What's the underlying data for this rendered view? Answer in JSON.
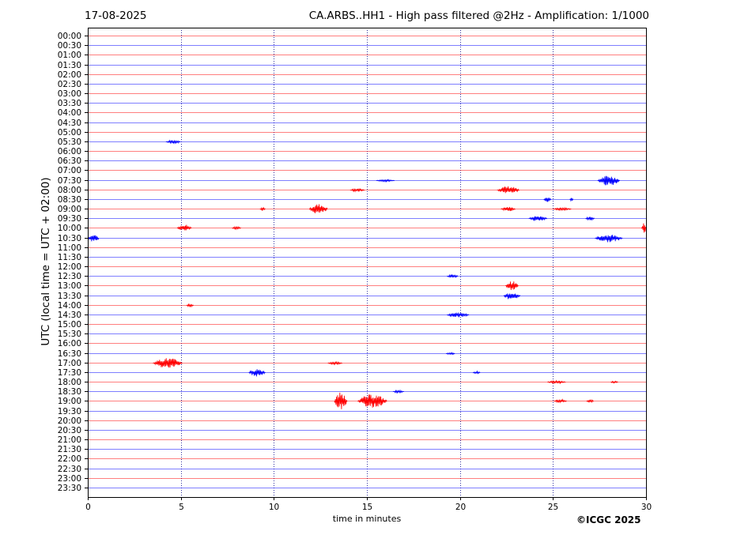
{
  "header": {
    "date": "17-08-2025",
    "title": "CA.ARBS..HH1 - High pass filtered @2Hz - Amplification: 1/1000"
  },
  "footer": {
    "copyright": "©ICGC 2025"
  },
  "colors": {
    "red_trace": "#ff0000",
    "blue_trace": "#0000ff",
    "grid": "#00008b",
    "axis": "#000000"
  },
  "chart_data": {
    "type": "line",
    "title": "CA.ARBS..HH1 - High pass filtered @2Hz - Amplification: 1/1000",
    "xlabel": "time in minutes",
    "ylabel": "UTC (local time = UTC + 02:00)",
    "xlim": [
      0,
      30
    ],
    "x_ticks": [
      0,
      5,
      10,
      15,
      20,
      25,
      30
    ],
    "vertical_grid": true,
    "grid_style": "dotted",
    "row_labels": [
      "00:00",
      "00:30",
      "01:00",
      "01:30",
      "02:00",
      "02:30",
      "03:00",
      "03:30",
      "04:00",
      "04:30",
      "05:00",
      "05:30",
      "06:00",
      "06:30",
      "07:00",
      "07:30",
      "08:00",
      "08:30",
      "09:00",
      "09:30",
      "10:00",
      "10:30",
      "11:00",
      "11:30",
      "12:00",
      "12:30",
      "13:00",
      "13:30",
      "14:00",
      "14:30",
      "15:00",
      "15:30",
      "16:00",
      "16:30",
      "17:00",
      "17:30",
      "18:00",
      "18:30",
      "19:00",
      "19:30",
      "20:00",
      "20:30",
      "21:00",
      "21:30",
      "22:00",
      "22:30",
      "23:00",
      "23:30"
    ],
    "row_colors": "alternating red (full hour) / blue (half hour)",
    "events": [
      {
        "row": "05:30",
        "x": 4.6,
        "amp": 0.15,
        "width": 0.8
      },
      {
        "row": "07:30",
        "x": 16.0,
        "amp": 0.1,
        "width": 1.0
      },
      {
        "row": "07:30",
        "x": 28.0,
        "amp": 0.45,
        "width": 1.2
      },
      {
        "row": "08:00",
        "x": 14.5,
        "amp": 0.15,
        "width": 0.8
      },
      {
        "row": "08:00",
        "x": 22.6,
        "amp": 0.35,
        "width": 1.2
      },
      {
        "row": "08:30",
        "x": 24.7,
        "amp": 0.2,
        "width": 0.4
      },
      {
        "row": "08:30",
        "x": 26.0,
        "amp": 0.15,
        "width": 0.2
      },
      {
        "row": "09:00",
        "x": 9.4,
        "amp": 0.15,
        "width": 0.3
      },
      {
        "row": "09:00",
        "x": 12.4,
        "amp": 0.45,
        "width": 1.0
      },
      {
        "row": "09:00",
        "x": 22.6,
        "amp": 0.2,
        "width": 0.8
      },
      {
        "row": "09:00",
        "x": 25.5,
        "amp": 0.12,
        "width": 1.0
      },
      {
        "row": "09:30",
        "x": 24.2,
        "amp": 0.25,
        "width": 1.0
      },
      {
        "row": "09:30",
        "x": 27.0,
        "amp": 0.15,
        "width": 0.5
      },
      {
        "row": "10:00",
        "x": 5.2,
        "amp": 0.3,
        "width": 0.8
      },
      {
        "row": "10:00",
        "x": 8.0,
        "amp": 0.12,
        "width": 0.5
      },
      {
        "row": "10:00",
        "x": 29.9,
        "amp": 0.5,
        "width": 0.3
      },
      {
        "row": "10:30",
        "x": 0.3,
        "amp": 0.35,
        "width": 0.6
      },
      {
        "row": "10:30",
        "x": 28.0,
        "amp": 0.35,
        "width": 1.5
      },
      {
        "row": "12:30",
        "x": 19.6,
        "amp": 0.15,
        "width": 0.6
      },
      {
        "row": "13:00",
        "x": 22.8,
        "amp": 0.4,
        "width": 0.7
      },
      {
        "row": "13:30",
        "x": 22.8,
        "amp": 0.35,
        "width": 0.9
      },
      {
        "row": "14:00",
        "x": 5.5,
        "amp": 0.12,
        "width": 0.4
      },
      {
        "row": "14:30",
        "x": 19.9,
        "amp": 0.2,
        "width": 1.2
      },
      {
        "row": "16:30",
        "x": 19.5,
        "amp": 0.1,
        "width": 0.5
      },
      {
        "row": "17:00",
        "x": 4.3,
        "amp": 0.45,
        "width": 1.6
      },
      {
        "row": "17:00",
        "x": 13.3,
        "amp": 0.12,
        "width": 0.8
      },
      {
        "row": "17:30",
        "x": 9.1,
        "amp": 0.35,
        "width": 0.9
      },
      {
        "row": "17:30",
        "x": 20.9,
        "amp": 0.12,
        "width": 0.4
      },
      {
        "row": "18:00",
        "x": 25.2,
        "amp": 0.12,
        "width": 1.0
      },
      {
        "row": "18:00",
        "x": 28.3,
        "amp": 0.1,
        "width": 0.4
      },
      {
        "row": "18:30",
        "x": 16.7,
        "amp": 0.12,
        "width": 0.6
      },
      {
        "row": "19:00",
        "x": 13.6,
        "amp": 0.75,
        "width": 0.7
      },
      {
        "row": "19:00",
        "x": 15.3,
        "amp": 0.6,
        "width": 1.6
      },
      {
        "row": "19:00",
        "x": 25.4,
        "amp": 0.15,
        "width": 0.7
      },
      {
        "row": "19:00",
        "x": 27.0,
        "amp": 0.12,
        "width": 0.4
      }
    ]
  }
}
